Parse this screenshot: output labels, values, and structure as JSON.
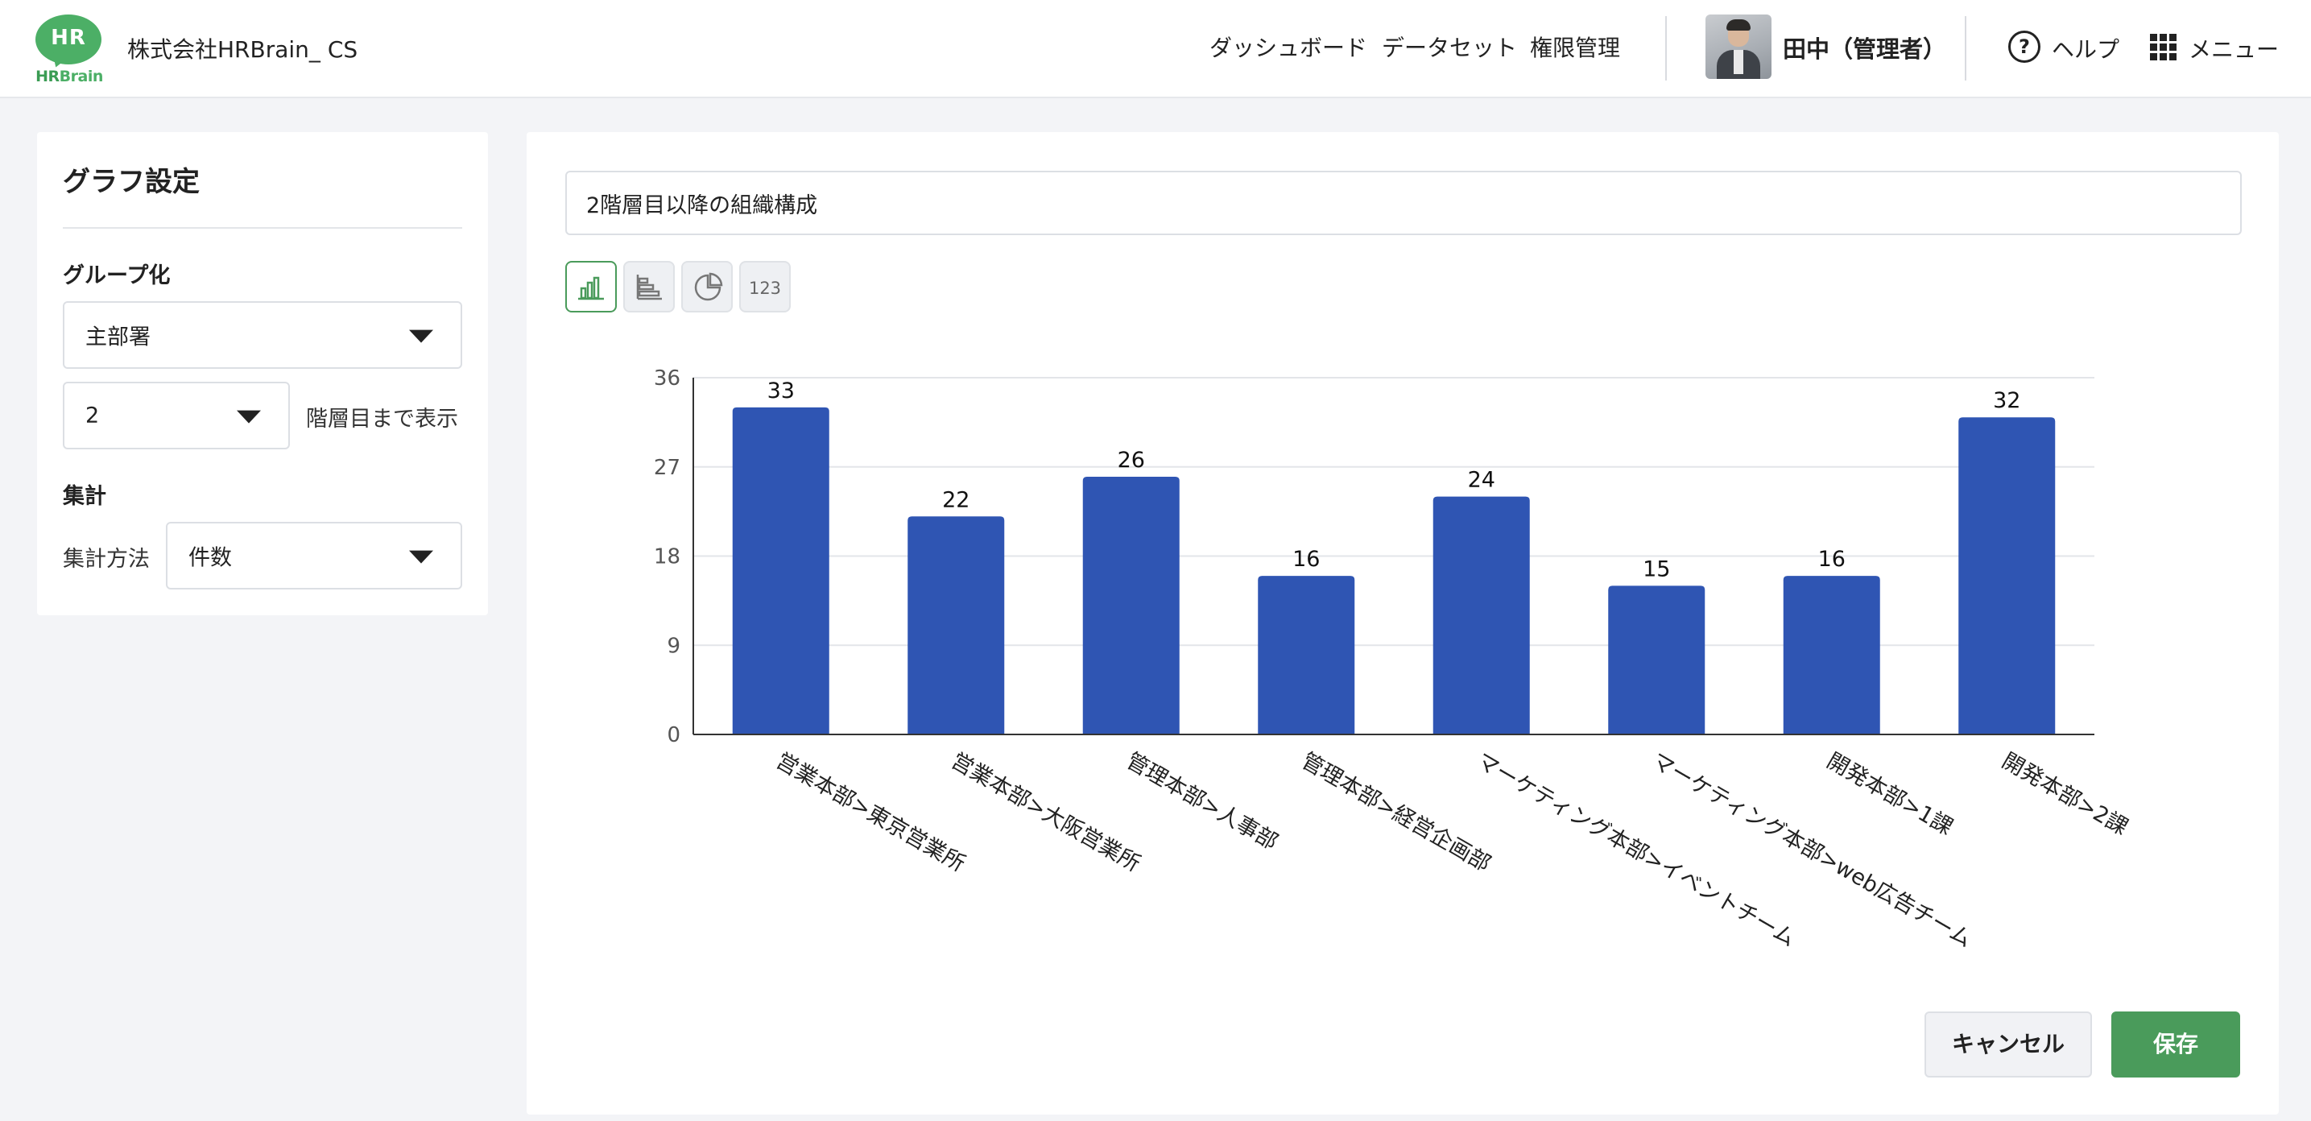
{
  "header": {
    "logo": {
      "mark_text": "HR",
      "brand_prefix": "HR",
      "brand_suffix": "Brain"
    },
    "company": "株式会社HRBrain_ CS",
    "nav": {
      "dashboard": "ダッシュボード",
      "dataset": "データセット",
      "permissions": "権限管理"
    },
    "user_name": "田中（管理者）",
    "help_label": "ヘルプ",
    "help_icon_glyph": "?",
    "menu_label": "メニュー"
  },
  "settings": {
    "title": "グラフ設定",
    "grouping_label": "グループ化",
    "grouping_value": "主部署",
    "level_value": "2",
    "level_suffix": "階層目まで表示",
    "aggregation_label": "集計",
    "method_label": "集計方法",
    "method_value": "件数"
  },
  "main": {
    "chart_title_value": "2階層目以降の組織構成",
    "chart_type_buttons": [
      {
        "icon": "vertical-bar-chart-icon",
        "active": true
      },
      {
        "icon": "horizontal-bar-chart-icon",
        "active": false
      },
      {
        "icon": "pie-chart-icon",
        "active": false
      },
      {
        "icon": "number-icon",
        "label": "123",
        "active": false
      }
    ],
    "cancel_label": "キャンセル",
    "save_label": "保存"
  },
  "colors": {
    "accent": "#4a9b5b",
    "bar": "#2f55b3",
    "brand": "#4caf66"
  },
  "chart_data": {
    "type": "bar",
    "categories": [
      "営業本部>東京営業所",
      "営業本部>大阪営業所",
      "管理本部>人事部",
      "管理本部>経営企画部",
      "マーケティング本部>イベントチーム",
      "マーケティング本部>web広告チーム",
      "開発本部>1課",
      "開発本部>2課"
    ],
    "values": [
      33,
      22,
      26,
      16,
      24,
      15,
      16,
      32
    ],
    "yticks": [
      0,
      9,
      18,
      27,
      36
    ],
    "ylim": [
      0,
      36
    ],
    "grid": true,
    "data_labels": true
  }
}
